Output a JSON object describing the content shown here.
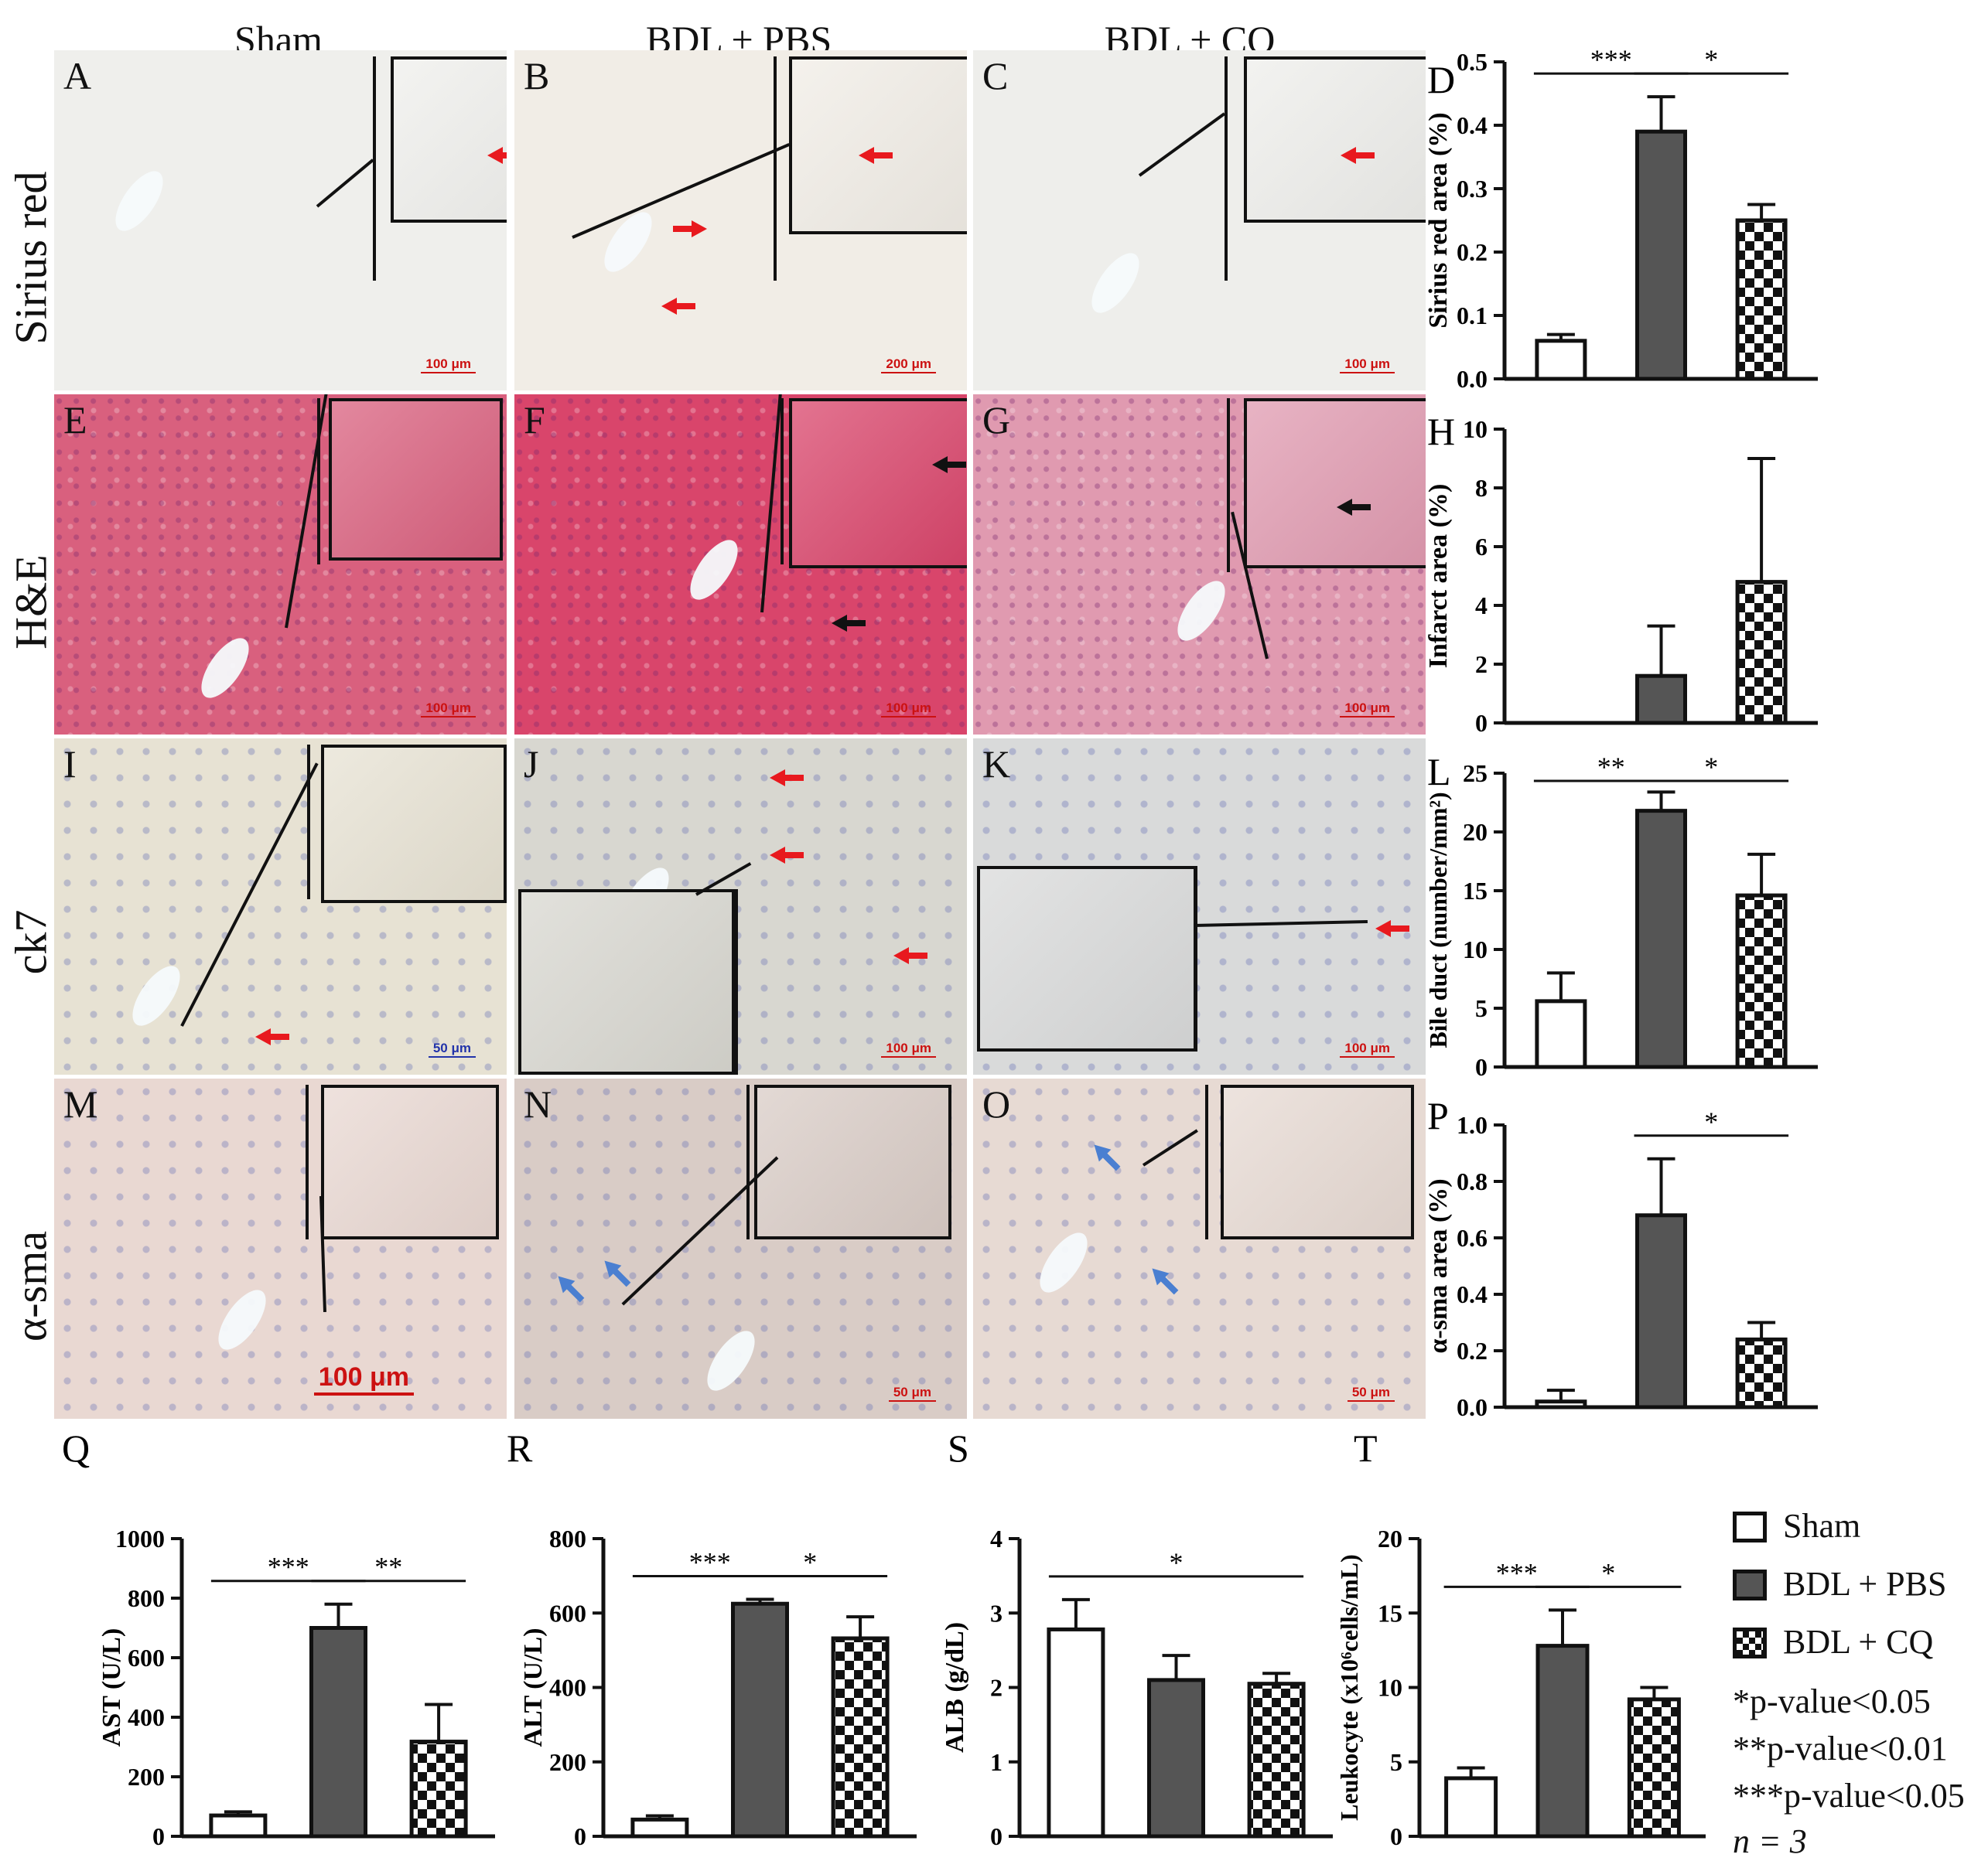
{
  "column_headers": [
    "Sham",
    "BDL + PBS",
    "BDL + CQ"
  ],
  "row_headers": [
    "Sirius red",
    "H&E",
    "ck7",
    "α-sma"
  ],
  "micro_panels": [
    {
      "label": "A",
      "scale": "100 μm",
      "bg": "#efefec",
      "tissue": "sirius"
    },
    {
      "label": "B",
      "scale": "200 μm",
      "bg": "#f1ede6",
      "tissue": "sirius"
    },
    {
      "label": "C",
      "scale": "100 μm",
      "bg": "#eeeeeb",
      "tissue": "sirius"
    },
    {
      "label": "E",
      "scale": "100 μm",
      "bg": "#d9607e",
      "tissue": "he"
    },
    {
      "label": "F",
      "scale": "100 μm",
      "bg": "#d9456b",
      "tissue": "he"
    },
    {
      "label": "G",
      "scale": "100 μm",
      "bg": "#e09ab0",
      "tissue": "he"
    },
    {
      "label": "I",
      "scale": "50 μm",
      "bg": "#e7e2d3",
      "tissue": "ck7"
    },
    {
      "label": "J",
      "scale": "100 μm",
      "bg": "#d8d7d0",
      "tissue": "ck7"
    },
    {
      "label": "K",
      "scale": "100 μm",
      "bg": "#d9dada",
      "tissue": "ck7"
    },
    {
      "label": "M",
      "scale": "100 μm",
      "bg": "#e9d8d2",
      "tissue": "sma"
    },
    {
      "label": "N",
      "scale": "50 μm",
      "bg": "#d9ccc6",
      "tissue": "sma"
    },
    {
      "label": "O",
      "scale": "50 μm",
      "bg": "#e7dad3",
      "tissue": "sma"
    }
  ],
  "chart_data": [
    {
      "panel": "D",
      "type": "bar",
      "categories": [
        "Sham",
        "BDL + PBS",
        "BDL + CQ"
      ],
      "values": [
        0.06,
        0.39,
        0.25
      ],
      "errors": [
        0.01,
        0.055,
        0.025
      ],
      "ylabel": "Sirius red area (%)",
      "ylim": [
        0,
        0.5
      ],
      "yticks": [
        "0.0",
        "0.1",
        "0.2",
        "0.3",
        "0.4",
        "0.5"
      ],
      "sig": [
        {
          "from": 0,
          "to": 1,
          "label": "***"
        },
        {
          "from": 1,
          "to": 2,
          "label": "*"
        }
      ]
    },
    {
      "panel": "H",
      "type": "bar",
      "categories": [
        "Sham",
        "BDL + PBS",
        "BDL + CQ"
      ],
      "values": [
        0,
        1.6,
        4.8
      ],
      "errors": [
        0,
        1.7,
        4.2
      ],
      "ylabel": "Infarct area (%)",
      "ylim": [
        0,
        10
      ],
      "yticks": [
        "0",
        "2",
        "4",
        "6",
        "8",
        "10"
      ],
      "sig": []
    },
    {
      "panel": "L",
      "type": "bar",
      "categories": [
        "Sham",
        "BDL + PBS",
        "BDL + CQ"
      ],
      "values": [
        5.6,
        21.8,
        14.6
      ],
      "errors": [
        2.4,
        1.6,
        3.5
      ],
      "ylabel": "Bile duct (number/mm²)",
      "ylim": [
        0,
        25
      ],
      "yticks": [
        "0",
        "5",
        "10",
        "15",
        "20",
        "25"
      ],
      "sig": [
        {
          "from": 0,
          "to": 1,
          "label": "**"
        },
        {
          "from": 1,
          "to": 2,
          "label": "*"
        }
      ]
    },
    {
      "panel": "P",
      "type": "bar",
      "categories": [
        "Sham",
        "BDL + PBS",
        "BDL + CQ"
      ],
      "values": [
        0.02,
        0.68,
        0.24
      ],
      "errors": [
        0.04,
        0.2,
        0.06
      ],
      "ylabel": "α-sma area (%)",
      "ylim": [
        0,
        1.0
      ],
      "yticks": [
        "0.0",
        "0.2",
        "0.4",
        "0.6",
        "0.8",
        "1.0"
      ],
      "sig": [
        {
          "from": 1,
          "to": 2,
          "label": "*"
        }
      ]
    },
    {
      "panel": "Q",
      "type": "bar",
      "categories": [
        "Sham",
        "BDL + PBS",
        "BDL + CQ"
      ],
      "values": [
        70,
        700,
        318
      ],
      "errors": [
        12,
        80,
        125
      ],
      "ylabel": "AST (U/L)",
      "ylim": [
        0,
        1000
      ],
      "yticks": [
        "0",
        "200",
        "400",
        "600",
        "800",
        "1000"
      ],
      "sig": [
        {
          "from": 0,
          "to": 1,
          "label": "***"
        },
        {
          "from": 1,
          "to": 2,
          "label": "**"
        }
      ]
    },
    {
      "panel": "R",
      "type": "bar",
      "categories": [
        "Sham",
        "BDL + PBS",
        "BDL + CQ"
      ],
      "values": [
        45,
        625,
        532
      ],
      "errors": [
        10,
        12,
        58
      ],
      "ylabel": "ALT (U/L)",
      "ylim": [
        0,
        800
      ],
      "yticks": [
        "0",
        "200",
        "400",
        "600",
        "800"
      ],
      "sig": [
        {
          "from": 0,
          "to": 1,
          "label": "***"
        },
        {
          "from": 1,
          "to": 2,
          "label": "*"
        }
      ]
    },
    {
      "panel": "S",
      "type": "bar",
      "categories": [
        "Sham",
        "BDL + PBS",
        "BDL + CQ"
      ],
      "values": [
        2.78,
        2.1,
        2.05
      ],
      "errors": [
        0.4,
        0.33,
        0.14
      ],
      "ylabel": "ALB (g/dL)",
      "ylim": [
        0,
        4
      ],
      "yticks": [
        "0",
        "1",
        "2",
        "3",
        "4"
      ],
      "sig": [
        {
          "from": 0,
          "to": 2,
          "label": "*"
        }
      ]
    },
    {
      "panel": "T",
      "type": "bar",
      "categories": [
        "Sham",
        "BDL + PBS",
        "BDL + CQ"
      ],
      "values": [
        3.9,
        12.8,
        9.2
      ],
      "errors": [
        0.7,
        2.4,
        0.8
      ],
      "ylabel": "Leukocyte (x10⁶cells/mL)",
      "ylim": [
        0,
        20
      ],
      "yticks": [
        "0",
        "5",
        "10",
        "15",
        "20"
      ],
      "sig": [
        {
          "from": 0,
          "to": 1,
          "label": "***"
        },
        {
          "from": 1,
          "to": 2,
          "label": "*"
        }
      ]
    }
  ],
  "legend": [
    "Sham",
    "BDL + PBS",
    "BDL + CQ"
  ],
  "notes": [
    "*p-value<0.05",
    "**p-value<0.01",
    "***p-value<0.05",
    "n = 3"
  ],
  "colors": {
    "pbs_fill": "#555555",
    "sham_fill": "#ffffff",
    "red_arrow": "#e8191e",
    "blue_arrow": "#4a7fd1",
    "black_arrow": "#111111"
  }
}
